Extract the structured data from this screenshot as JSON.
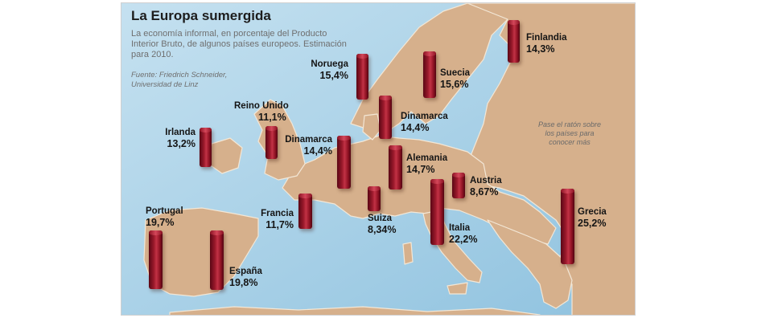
{
  "header": {
    "title": "La Europa sumergida",
    "subtitle": "La economía informal, en porcentaje del Producto Interior Bruto, de algunos países europeos. Estimación para 2010.",
    "source": "Fuente: Friedrich Schneider, Universidad de Linz"
  },
  "hint": "Pase el ratón sobre los países para conocer más",
  "colors": {
    "sea": "#9ecbe4",
    "land": "#d6b08c",
    "bar": "#9c1a2c"
  },
  "countries": [
    {
      "name": "Noruega",
      "value_label": "15,4%",
      "value": 15.4
    },
    {
      "name": "Suecia",
      "value_label": "15,6%",
      "value": 15.6
    },
    {
      "name": "Finlandia",
      "value_label": "14,3%",
      "value": 14.3
    },
    {
      "name": "Reino Unido",
      "value_label": "11,1%",
      "value": 11.1
    },
    {
      "name": "Dinamarca",
      "value_label": "14,4%",
      "value": 14.4
    },
    {
      "name": "Irlanda",
      "value_label": "13,2%",
      "value": 13.2
    },
    {
      "name": "Dinamarca",
      "value_label": "14,4%",
      "value": 14.4
    },
    {
      "name": "Alemania",
      "value_label": "14,7%",
      "value": 14.7
    },
    {
      "name": "Austria",
      "value_label": "8,67%",
      "value": 8.67
    },
    {
      "name": "Portugal",
      "value_label": "19,7%",
      "value": 19.7
    },
    {
      "name": "Francia",
      "value_label": "11,7%",
      "value": 11.7
    },
    {
      "name": "Suiza",
      "value_label": "8,34%",
      "value": 8.34
    },
    {
      "name": "Italia",
      "value_label": "22,2%",
      "value": 22.2
    },
    {
      "name": "Grecia",
      "value_label": "25,2%",
      "value": 25.2
    },
    {
      "name": "España",
      "value_label": "19,8%",
      "value": 19.8
    }
  ]
}
